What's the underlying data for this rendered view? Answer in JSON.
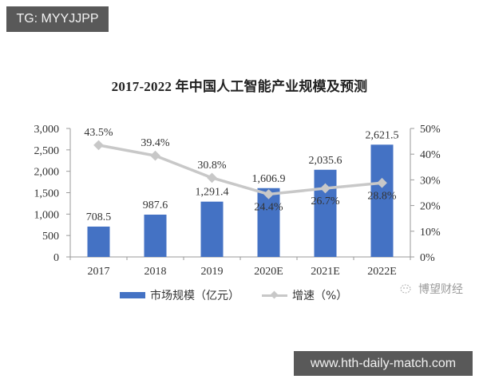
{
  "overlay": {
    "top_tag": "TG: MYYJJPP",
    "bottom_tag": "www.hth-daily-match.com",
    "watermark": "博望财经"
  },
  "chart_data": {
    "type": "bar",
    "title": "2017-2022 年中国人工智能产业规模及预测",
    "categories": [
      "2017",
      "2018",
      "2019",
      "2020E",
      "2021E",
      "2022E"
    ],
    "series": [
      {
        "name": "市场规模（亿元）",
        "type": "bar",
        "axis": "left",
        "color": "#4472c4",
        "values": [
          708.5,
          987.6,
          1291.4,
          1606.9,
          2035.6,
          2621.5
        ],
        "labels": [
          "708.5",
          "987.6",
          "1,291.4",
          "1,606.9",
          "2,035.6",
          "2,621.5"
        ]
      },
      {
        "name": "增速（%）",
        "type": "line",
        "axis": "right",
        "color": "#c8c8c8",
        "values": [
          43.5,
          39.4,
          30.8,
          24.4,
          26.7,
          28.8
        ],
        "labels": [
          "43.5%",
          "39.4%",
          "30.8%",
          "24.4%",
          "26.7%",
          "28.8%"
        ]
      }
    ],
    "xlabel": "",
    "ylabel": "",
    "ylim": [
      0,
      3000
    ],
    "y_ticks": [
      "0",
      "500",
      "1,000",
      "1,500",
      "2,000",
      "2,500",
      "3,000"
    ],
    "y2lim": [
      0,
      50
    ],
    "y2_ticks": [
      "0%",
      "10%",
      "20%",
      "30%",
      "40%",
      "50%"
    ],
    "grid": false,
    "legend_position": "bottom",
    "legend": [
      "市场规模（亿元）",
      "增速（%）"
    ]
  }
}
